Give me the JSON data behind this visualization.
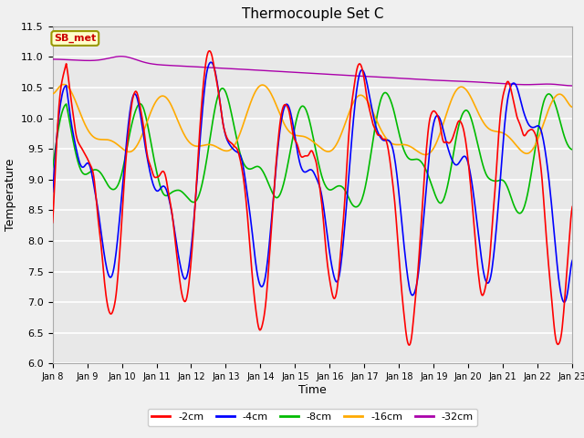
{
  "title": "Thermocouple Set C",
  "xlabel": "Time",
  "ylabel": "Temperature",
  "ylim": [
    6.0,
    11.5
  ],
  "annotation_text": "SB_met",
  "annotation_facecolor": "#ffffcc",
  "annotation_edgecolor": "#999900",
  "annotation_textcolor": "#cc0000",
  "colors": {
    "-2cm": "#ff0000",
    "-4cm": "#0000ff",
    "-8cm": "#00bb00",
    "-16cm": "#ffaa00",
    "-32cm": "#aa00aa"
  },
  "legend_labels": [
    "-2cm",
    "-4cm",
    "-8cm",
    "-16cm",
    "-32cm"
  ],
  "x_tick_labels": [
    "Jan 8",
    "Jan 9",
    "Jan 10",
    "Jan 11",
    "Jan 12",
    "Jan 13",
    "Jan 14",
    "Jan 15",
    "Jan 16",
    "Jan 17",
    "Jan 18",
    "Jan 19",
    "Jan 20",
    "Jan 21",
    "Jan 22",
    "Jan 23"
  ],
  "plot_bg_color": "#e8e8e8",
  "fig_bg_color": "#f0f0f0",
  "grid_color": "#ffffff"
}
